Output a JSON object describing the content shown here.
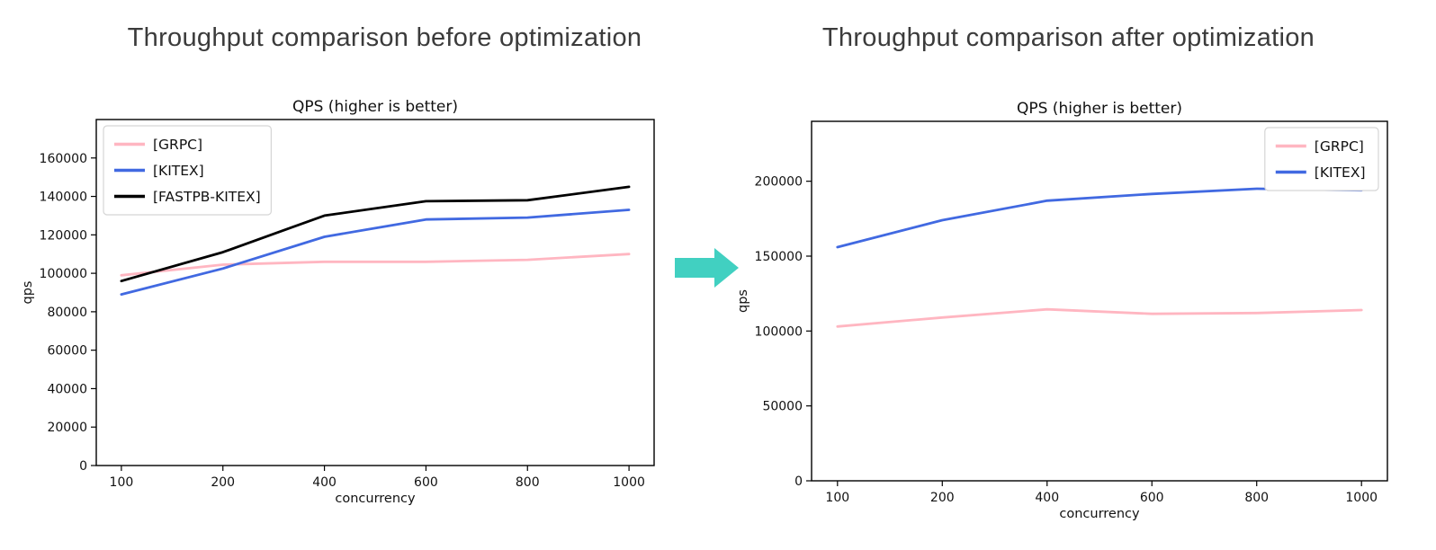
{
  "headings": {
    "left": "Throughput comparison before optimization",
    "right": "Throughput comparison after optimization"
  },
  "arrow": {
    "meaning": "transition from before to after",
    "color": "#41d0c1"
  },
  "chart_data": [
    {
      "id": "before-optimization",
      "type": "line",
      "title": "QPS (higher is better)",
      "xlabel": "concurrency",
      "ylabel": "qps",
      "categories": [
        "100",
        "200",
        "400",
        "600",
        "800",
        "1000"
      ],
      "yticks": [
        0,
        20000,
        40000,
        60000,
        80000,
        100000,
        120000,
        140000,
        160000
      ],
      "ylim": [
        0,
        180000
      ],
      "grid": false,
      "legend_position": "top-left",
      "series": [
        {
          "name": "[GRPC]",
          "color": "#ffb6c1",
          "values": [
            99000,
            104500,
            106000,
            106000,
            107000,
            110000
          ]
        },
        {
          "name": "[KITEX]",
          "color": "#4169e1",
          "values": [
            89000,
            102500,
            119000,
            128000,
            129000,
            133000
          ]
        },
        {
          "name": "[FASTPB-KITEX]",
          "color": "#000000",
          "values": [
            96000,
            111000,
            130000,
            137500,
            138000,
            145000
          ]
        }
      ]
    },
    {
      "id": "after-optimization",
      "type": "line",
      "title": "QPS (higher is better)",
      "xlabel": "concurrency",
      "ylabel": "qps",
      "categories": [
        "100",
        "200",
        "400",
        "600",
        "800",
        "1000"
      ],
      "yticks": [
        0,
        50000,
        100000,
        150000,
        200000
      ],
      "ylim": [
        0,
        240000
      ],
      "grid": false,
      "legend_position": "top-right",
      "series": [
        {
          "name": "[GRPC]",
          "color": "#ffb6c1",
          "values": [
            103000,
            109000,
            114500,
            111500,
            112000,
            114000
          ]
        },
        {
          "name": "[KITEX]",
          "color": "#4169e1",
          "values": [
            156000,
            174000,
            187000,
            191500,
            195000,
            194000
          ]
        }
      ]
    }
  ]
}
